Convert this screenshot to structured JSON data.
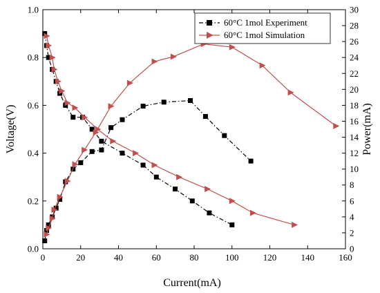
{
  "chart_data": {
    "type": "line",
    "xlabel": "Current(mA)",
    "ylabel_left": "Voltage(V)",
    "ylabel_right": "Power(mA)",
    "xlim": [
      0,
      160
    ],
    "ylim_left": [
      0.0,
      1.0
    ],
    "ylim_right": [
      0,
      30
    ],
    "x_ticks": [
      "0",
      "20",
      "40",
      "60",
      "80",
      "100",
      "120",
      "140",
      "160"
    ],
    "y_left_ticks": [
      "0.0",
      "0.2",
      "0.4",
      "0.6",
      "0.8",
      "1.0"
    ],
    "y_right_ticks": [
      "0",
      "2",
      "4",
      "6",
      "8",
      "10",
      "12",
      "14",
      "16",
      "18",
      "20",
      "22",
      "24",
      "26",
      "28",
      "30"
    ],
    "grid": false,
    "legend_position": "top-right",
    "legend": [
      {
        "label": "60°C 1mol Experiment",
        "color": "#000000",
        "marker": "square",
        "line": "dash-dot"
      },
      {
        "label": "60°C 1mol Simulation",
        "color": "#c0504d",
        "marker": "triangle-right",
        "line": "solid"
      }
    ],
    "series": [
      {
        "name": "60°C 1mol Experiment",
        "axis": "left",
        "color": "#000000",
        "marker": "square",
        "x": [
          1,
          2,
          3,
          5,
          7,
          9,
          12,
          16,
          21,
          26,
          31,
          42,
          53,
          60,
          70,
          79,
          88,
          100
        ],
        "y": [
          0.9,
          0.85,
          0.8,
          0.75,
          0.7,
          0.65,
          0.6,
          0.55,
          0.55,
          0.5,
          0.45,
          0.4,
          0.35,
          0.3,
          0.25,
          0.2,
          0.15,
          0.1
        ]
      },
      {
        "name": "60°C 1mol Experiment",
        "axis": "right",
        "color": "#000000",
        "marker": "square",
        "x": [
          1,
          2,
          3,
          5,
          7,
          9,
          12,
          16,
          20,
          26,
          31,
          36,
          42,
          53,
          64,
          78,
          86,
          96,
          110
        ],
        "y": [
          1.0,
          2.3,
          3.0,
          4.0,
          5.1,
          6.2,
          8.4,
          10.0,
          10.8,
          12.2,
          12.4,
          15.2,
          16.2,
          17.9,
          18.4,
          18.6,
          16.6,
          14.2,
          11.0
        ]
      },
      {
        "name": "60°C 1mol Simulation",
        "axis": "left",
        "color": "#c0504d",
        "marker": "triangle-right",
        "x": [
          2,
          3,
          5,
          6,
          8,
          10,
          13,
          17,
          22,
          29,
          37,
          49,
          59,
          72,
          87,
          100,
          111,
          133
        ],
        "y": [
          0.89,
          0.85,
          0.8,
          0.75,
          0.7,
          0.66,
          0.61,
          0.59,
          0.55,
          0.5,
          0.45,
          0.4,
          0.35,
          0.3,
          0.25,
          0.2,
          0.15,
          0.1
        ]
      },
      {
        "name": "60°C 1mol Simulation",
        "axis": "right",
        "color": "#c0504d",
        "marker": "triangle-right",
        "x": [
          2,
          3,
          5,
          6,
          9,
          13,
          17,
          22,
          28,
          36,
          46,
          59,
          69,
          85,
          100,
          116,
          131,
          155
        ],
        "y": [
          1.8,
          2.6,
          3.8,
          4.9,
          6.5,
          8.5,
          10.6,
          12.4,
          14.6,
          17.9,
          20.8,
          23.5,
          24.1,
          25.7,
          25.3,
          23.0,
          19.6,
          15.4
        ]
      }
    ]
  }
}
